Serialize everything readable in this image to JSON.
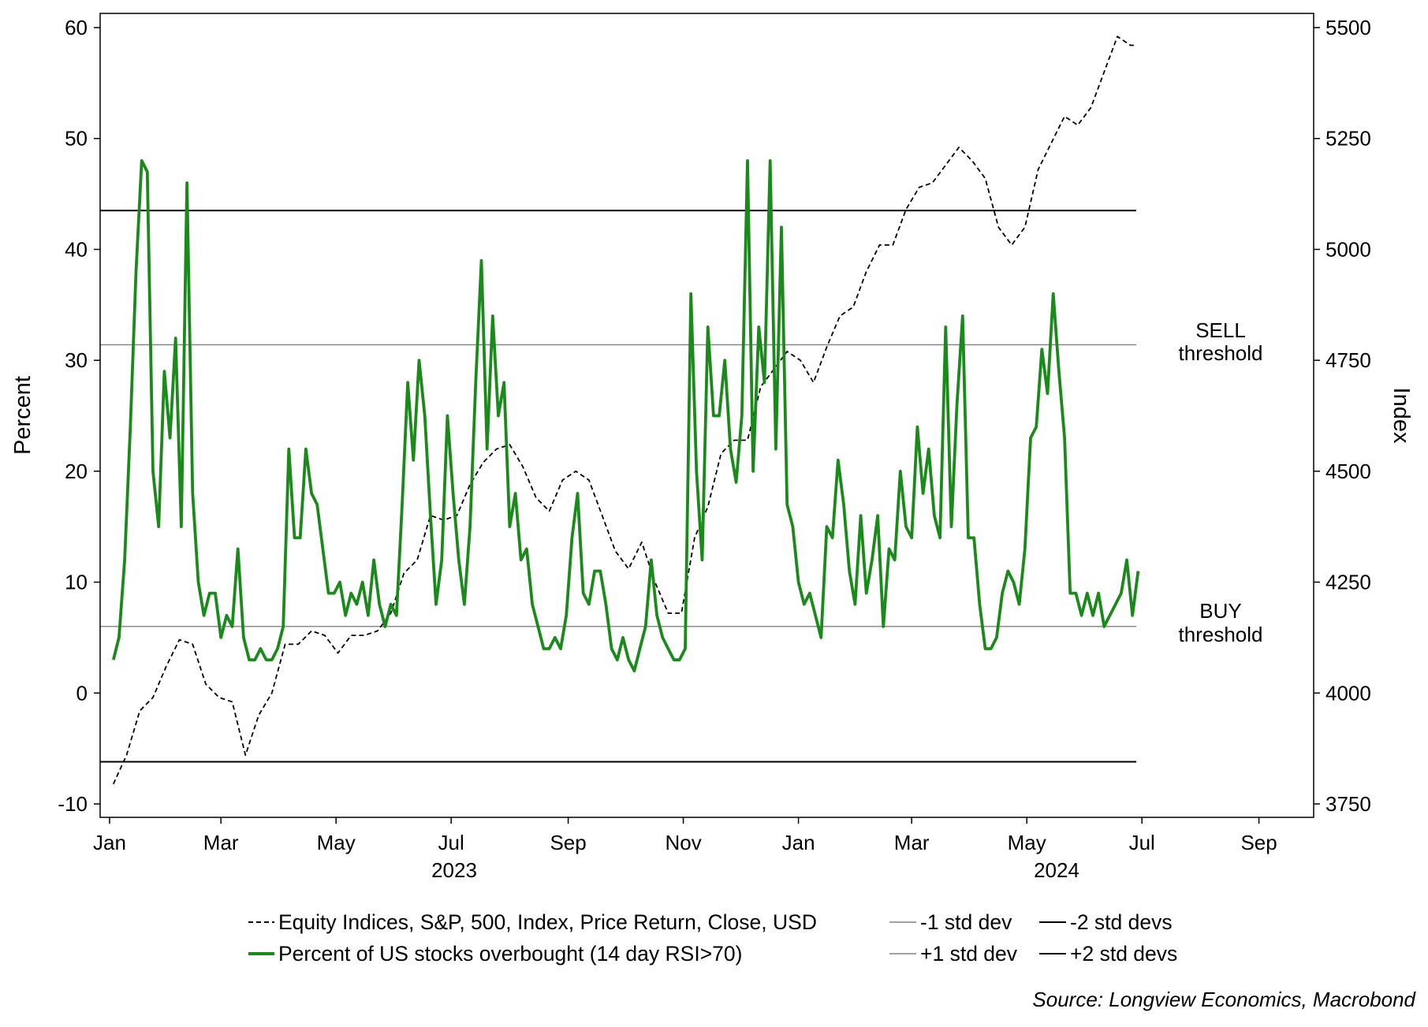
{
  "chart_data": {
    "type": "line",
    "y_left_label": "Percent",
    "y_right_label": "Index",
    "y_left_range": [
      -10,
      60
    ],
    "y_right_range": [
      3750,
      5500
    ],
    "y_left_ticks": [
      "60",
      "50",
      "40",
      "30",
      "20",
      "10",
      "0",
      "-10"
    ],
    "y_right_ticks": [
      "5500",
      "5250",
      "5000",
      "4750",
      "4500",
      "4250",
      "4000",
      "3750"
    ],
    "x_month_ticks": [
      "Jan",
      "Mar",
      "May",
      "Jul",
      "Sep",
      "Nov",
      "Jan",
      "Mar",
      "May",
      "Jul",
      "Sep"
    ],
    "x_year_labels": [
      "2023",
      "2024"
    ],
    "x_range": [
      "2022-12-27",
      "2024-09-30"
    ],
    "grid": false,
    "legend_position": "bottom",
    "reference_lines": [
      {
        "name": "+2 std devs",
        "value": 43.5,
        "color": "#000000"
      },
      {
        "name": "+1 std dev",
        "value": 31.4,
        "color": "#808080"
      },
      {
        "name": "-1 std dev",
        "value": 6.0,
        "color": "#808080"
      },
      {
        "name": "-2 std devs",
        "value": -6.2,
        "color": "#000000"
      }
    ],
    "annotations": [
      {
        "line1": "SELL",
        "line2": "threshold",
        "color": "#8b0000"
      },
      {
        "line1": "BUY",
        "line2": "threshold",
        "color": "#8b0000"
      }
    ],
    "series": [
      {
        "name": "Equity Indices, S&P, 500, Index, Price Return, Close, USD",
        "axis": "right",
        "style": "dashed",
        "color": "#000000",
        "x": [
          "2023-01-03",
          "2023-01-10",
          "2023-01-17",
          "2023-01-24",
          "2023-01-31",
          "2023-02-07",
          "2023-02-14",
          "2023-02-21",
          "2023-02-28",
          "2023-03-07",
          "2023-03-14",
          "2023-03-21",
          "2023-03-28",
          "2023-04-04",
          "2023-04-11",
          "2023-04-18",
          "2023-04-25",
          "2023-05-02",
          "2023-05-09",
          "2023-05-16",
          "2023-05-23",
          "2023-05-30",
          "2023-06-06",
          "2023-06-13",
          "2023-06-20",
          "2023-06-27",
          "2023-07-04",
          "2023-07-11",
          "2023-07-18",
          "2023-07-25",
          "2023-08-01",
          "2023-08-08",
          "2023-08-15",
          "2023-08-22",
          "2023-08-29",
          "2023-09-05",
          "2023-09-12",
          "2023-09-19",
          "2023-09-26",
          "2023-10-03",
          "2023-10-10",
          "2023-10-17",
          "2023-10-24",
          "2023-10-31",
          "2023-11-07",
          "2023-11-14",
          "2023-11-21",
          "2023-11-28",
          "2023-12-05",
          "2023-12-12",
          "2023-12-19",
          "2023-12-26",
          "2024-01-02",
          "2024-01-09",
          "2024-01-16",
          "2024-01-23",
          "2024-01-30",
          "2024-02-06",
          "2024-02-13",
          "2024-02-20",
          "2024-02-27",
          "2024-03-05",
          "2024-03-12",
          "2024-03-19",
          "2024-03-26",
          "2024-04-02",
          "2024-04-09",
          "2024-04-16",
          "2024-04-23",
          "2024-04-30",
          "2024-05-07",
          "2024-05-14",
          "2024-05-21",
          "2024-05-28",
          "2024-06-04",
          "2024-06-11",
          "2024-06-18",
          "2024-06-25",
          "2024-06-28"
        ],
        "y": [
          3795,
          3860,
          3960,
          3990,
          4060,
          4120,
          4110,
          4020,
          3990,
          3980,
          3860,
          3950,
          4000,
          4110,
          4110,
          4140,
          4130,
          4090,
          4130,
          4130,
          4140,
          4180,
          4270,
          4300,
          4400,
          4390,
          4400,
          4470,
          4520,
          4550,
          4560,
          4510,
          4440,
          4410,
          4480,
          4500,
          4480,
          4400,
          4320,
          4280,
          4340,
          4250,
          4180,
          4180,
          4350,
          4420,
          4540,
          4570,
          4570,
          4690,
          4730,
          4770,
          4750,
          4700,
          4780,
          4850,
          4870,
          4950,
          5010,
          5010,
          5090,
          5140,
          5150,
          5190,
          5230,
          5200,
          5160,
          5050,
          5010,
          5050,
          5180,
          5240,
          5300,
          5280,
          5320,
          5400,
          5480,
          5460,
          5460
        ]
      },
      {
        "name": "Percent of US stocks overbought (14 day RSI>70)",
        "axis": "left",
        "style": "solid",
        "color": "#1a8a1a",
        "x": [
          "2023-01-03",
          "2023-01-06",
          "2023-01-09",
          "2023-01-12",
          "2023-01-15",
          "2023-01-18",
          "2023-01-21",
          "2023-01-24",
          "2023-01-27",
          "2023-01-30",
          "2023-02-02",
          "2023-02-05",
          "2023-02-08",
          "2023-02-11",
          "2023-02-14",
          "2023-02-17",
          "2023-02-20",
          "2023-02-23",
          "2023-02-26",
          "2023-03-01",
          "2023-03-04",
          "2023-03-07",
          "2023-03-10",
          "2023-03-13",
          "2023-03-16",
          "2023-03-19",
          "2023-03-22",
          "2023-03-25",
          "2023-03-28",
          "2023-03-31",
          "2023-04-03",
          "2023-04-06",
          "2023-04-09",
          "2023-04-12",
          "2023-04-15",
          "2023-04-18",
          "2023-04-21",
          "2023-04-24",
          "2023-04-27",
          "2023-04-30",
          "2023-05-03",
          "2023-05-06",
          "2023-05-09",
          "2023-05-12",
          "2023-05-15",
          "2023-05-18",
          "2023-05-21",
          "2023-05-24",
          "2023-05-27",
          "2023-05-30",
          "2023-06-02",
          "2023-06-05",
          "2023-06-08",
          "2023-06-11",
          "2023-06-14",
          "2023-06-17",
          "2023-06-20",
          "2023-06-23",
          "2023-06-26",
          "2023-06-29",
          "2023-07-02",
          "2023-07-05",
          "2023-07-08",
          "2023-07-11",
          "2023-07-14",
          "2023-07-17",
          "2023-07-20",
          "2023-07-23",
          "2023-07-26",
          "2023-07-29",
          "2023-08-01",
          "2023-08-04",
          "2023-08-07",
          "2023-08-10",
          "2023-08-13",
          "2023-08-16",
          "2023-08-19",
          "2023-08-22",
          "2023-08-25",
          "2023-08-28",
          "2023-08-31",
          "2023-09-03",
          "2023-09-06",
          "2023-09-09",
          "2023-09-12",
          "2023-09-15",
          "2023-09-18",
          "2023-09-21",
          "2023-09-24",
          "2023-09-27",
          "2023-09-30",
          "2023-10-03",
          "2023-10-06",
          "2023-10-09",
          "2023-10-12",
          "2023-10-15",
          "2023-10-18",
          "2023-10-21",
          "2023-10-24",
          "2023-10-27",
          "2023-10-30",
          "2023-11-02",
          "2023-11-05",
          "2023-11-08",
          "2023-11-11",
          "2023-11-14",
          "2023-11-17",
          "2023-11-20",
          "2023-11-23",
          "2023-11-26",
          "2023-11-29",
          "2023-12-02",
          "2023-12-05",
          "2023-12-08",
          "2023-12-11",
          "2023-12-14",
          "2023-12-17",
          "2023-12-20",
          "2023-12-23",
          "2023-12-26",
          "2023-12-29",
          "2024-01-01",
          "2024-01-04",
          "2024-01-07",
          "2024-01-10",
          "2024-01-13",
          "2024-01-16",
          "2024-01-19",
          "2024-01-22",
          "2024-01-25",
          "2024-01-28",
          "2024-01-31",
          "2024-02-03",
          "2024-02-06",
          "2024-02-09",
          "2024-02-12",
          "2024-02-15",
          "2024-02-18",
          "2024-02-21",
          "2024-02-24",
          "2024-02-27",
          "2024-03-01",
          "2024-03-04",
          "2024-03-07",
          "2024-03-10",
          "2024-03-13",
          "2024-03-16",
          "2024-03-19",
          "2024-03-22",
          "2024-03-25",
          "2024-03-28",
          "2024-03-31",
          "2024-04-03",
          "2024-04-06",
          "2024-04-09",
          "2024-04-12",
          "2024-04-15",
          "2024-04-18",
          "2024-04-21",
          "2024-04-24",
          "2024-04-27",
          "2024-04-30",
          "2024-05-03",
          "2024-05-06",
          "2024-05-09",
          "2024-05-12",
          "2024-05-15",
          "2024-05-18",
          "2024-05-21",
          "2024-05-24",
          "2024-05-27",
          "2024-05-30",
          "2024-06-02",
          "2024-06-05",
          "2024-06-08",
          "2024-06-11",
          "2024-06-14",
          "2024-06-17",
          "2024-06-20",
          "2024-06-23",
          "2024-06-26",
          "2024-06-29"
        ],
        "y": [
          3,
          5,
          12,
          24,
          38,
          48,
          47,
          20,
          15,
          29,
          23,
          32,
          15,
          46,
          18,
          10,
          7,
          9,
          9,
          5,
          7,
          6,
          13,
          5,
          3,
          3,
          4,
          3,
          3,
          4,
          6,
          22,
          14,
          14,
          22,
          18,
          17,
          13,
          9,
          9,
          10,
          7,
          9,
          8,
          10,
          7,
          12,
          8,
          6,
          8,
          7,
          17,
          28,
          21,
          30,
          25,
          16,
          8,
          12,
          25,
          18,
          12,
          8,
          15,
          28,
          39,
          22,
          34,
          25,
          28,
          15,
          18,
          12,
          13,
          8,
          6,
          4,
          4,
          5,
          4,
          7,
          14,
          18,
          9,
          8,
          11,
          11,
          8,
          4,
          3,
          5,
          3,
          2,
          4,
          6,
          12,
          7,
          5,
          4,
          3,
          3,
          4,
          36,
          20,
          12,
          33,
          25,
          25,
          30,
          22,
          19,
          25,
          48,
          20,
          33,
          28,
          48,
          22,
          42,
          17,
          15,
          10,
          8,
          9,
          7,
          5,
          15,
          14,
          21,
          17,
          11,
          8,
          16,
          9,
          12,
          16,
          6,
          13,
          12,
          20,
          15,
          14,
          24,
          18,
          22,
          16,
          14,
          33,
          15,
          26,
          34,
          14,
          14,
          8,
          4,
          4,
          5,
          9,
          11,
          10,
          8,
          13,
          23,
          24,
          31,
          27,
          36,
          29,
          23,
          9,
          9,
          7,
          9,
          7,
          9,
          6,
          7,
          8,
          9,
          12,
          7,
          11
        ]
      }
    ],
    "legend": [
      {
        "label": "Equity Indices, S&P, 500, Index, Price Return, Close, USD",
        "style": "dashed",
        "color": "#000000"
      },
      {
        "label": "-1 std dev",
        "style": "thin",
        "color": "#808080"
      },
      {
        "label": "-2 std devs",
        "style": "solid",
        "color": "#000000"
      },
      {
        "label": "Percent of US stocks overbought (14 day RSI>70)",
        "style": "thick",
        "color": "#1a8a1a"
      },
      {
        "label": "+1 std dev",
        "style": "thin",
        "color": "#808080"
      },
      {
        "label": "+2 std devs",
        "style": "solid",
        "color": "#000000"
      }
    ],
    "source": "Source: Longview Economics, Macrobond"
  }
}
